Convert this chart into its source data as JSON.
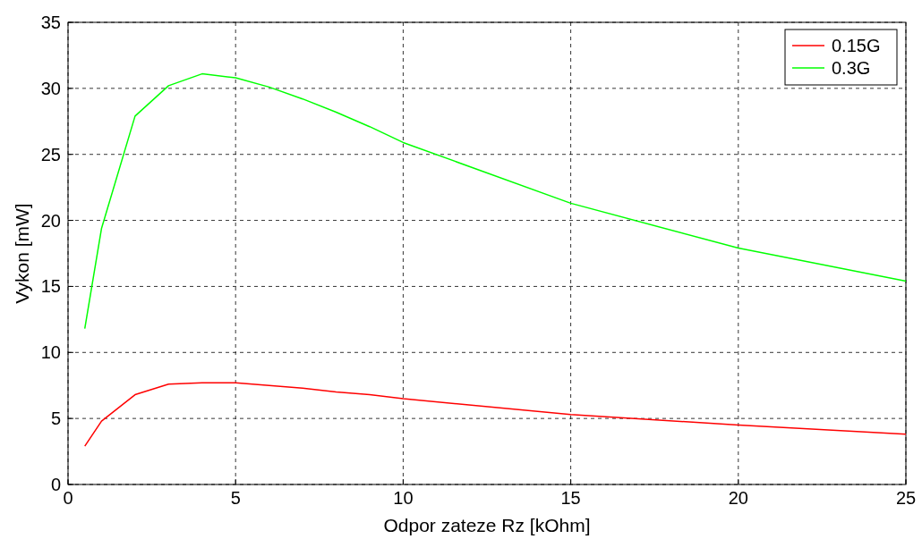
{
  "chart_data": {
    "type": "line",
    "xlabel": "Odpor zateze Rz [kOhm]",
    "ylabel": "Vykon [mW]",
    "x": [
      0.5,
      1,
      2,
      3,
      4,
      5,
      6,
      7,
      8,
      9,
      10,
      15,
      20,
      25
    ],
    "series": [
      {
        "name": "0.15G",
        "color": "#ff0000",
        "values": [
          2.9,
          4.8,
          6.8,
          7.6,
          7.7,
          7.7,
          7.5,
          7.3,
          7.0,
          6.8,
          6.5,
          5.3,
          4.5,
          3.8
        ]
      },
      {
        "name": "0.3G",
        "color": "#00ff00",
        "values": [
          11.8,
          19.4,
          27.9,
          30.2,
          31.1,
          30.8,
          30.1,
          29.2,
          28.2,
          27.1,
          25.9,
          21.3,
          17.9,
          15.4
        ]
      }
    ],
    "xlim": [
      0,
      25
    ],
    "xticks": [
      0,
      5,
      10,
      15,
      20,
      25
    ],
    "ylim": [
      0,
      35
    ],
    "yticks": [
      0,
      5,
      10,
      15,
      20,
      25,
      30,
      35
    ],
    "grid": true,
    "legend": "top right",
    "line_style": "solid",
    "marker": "none"
  }
}
